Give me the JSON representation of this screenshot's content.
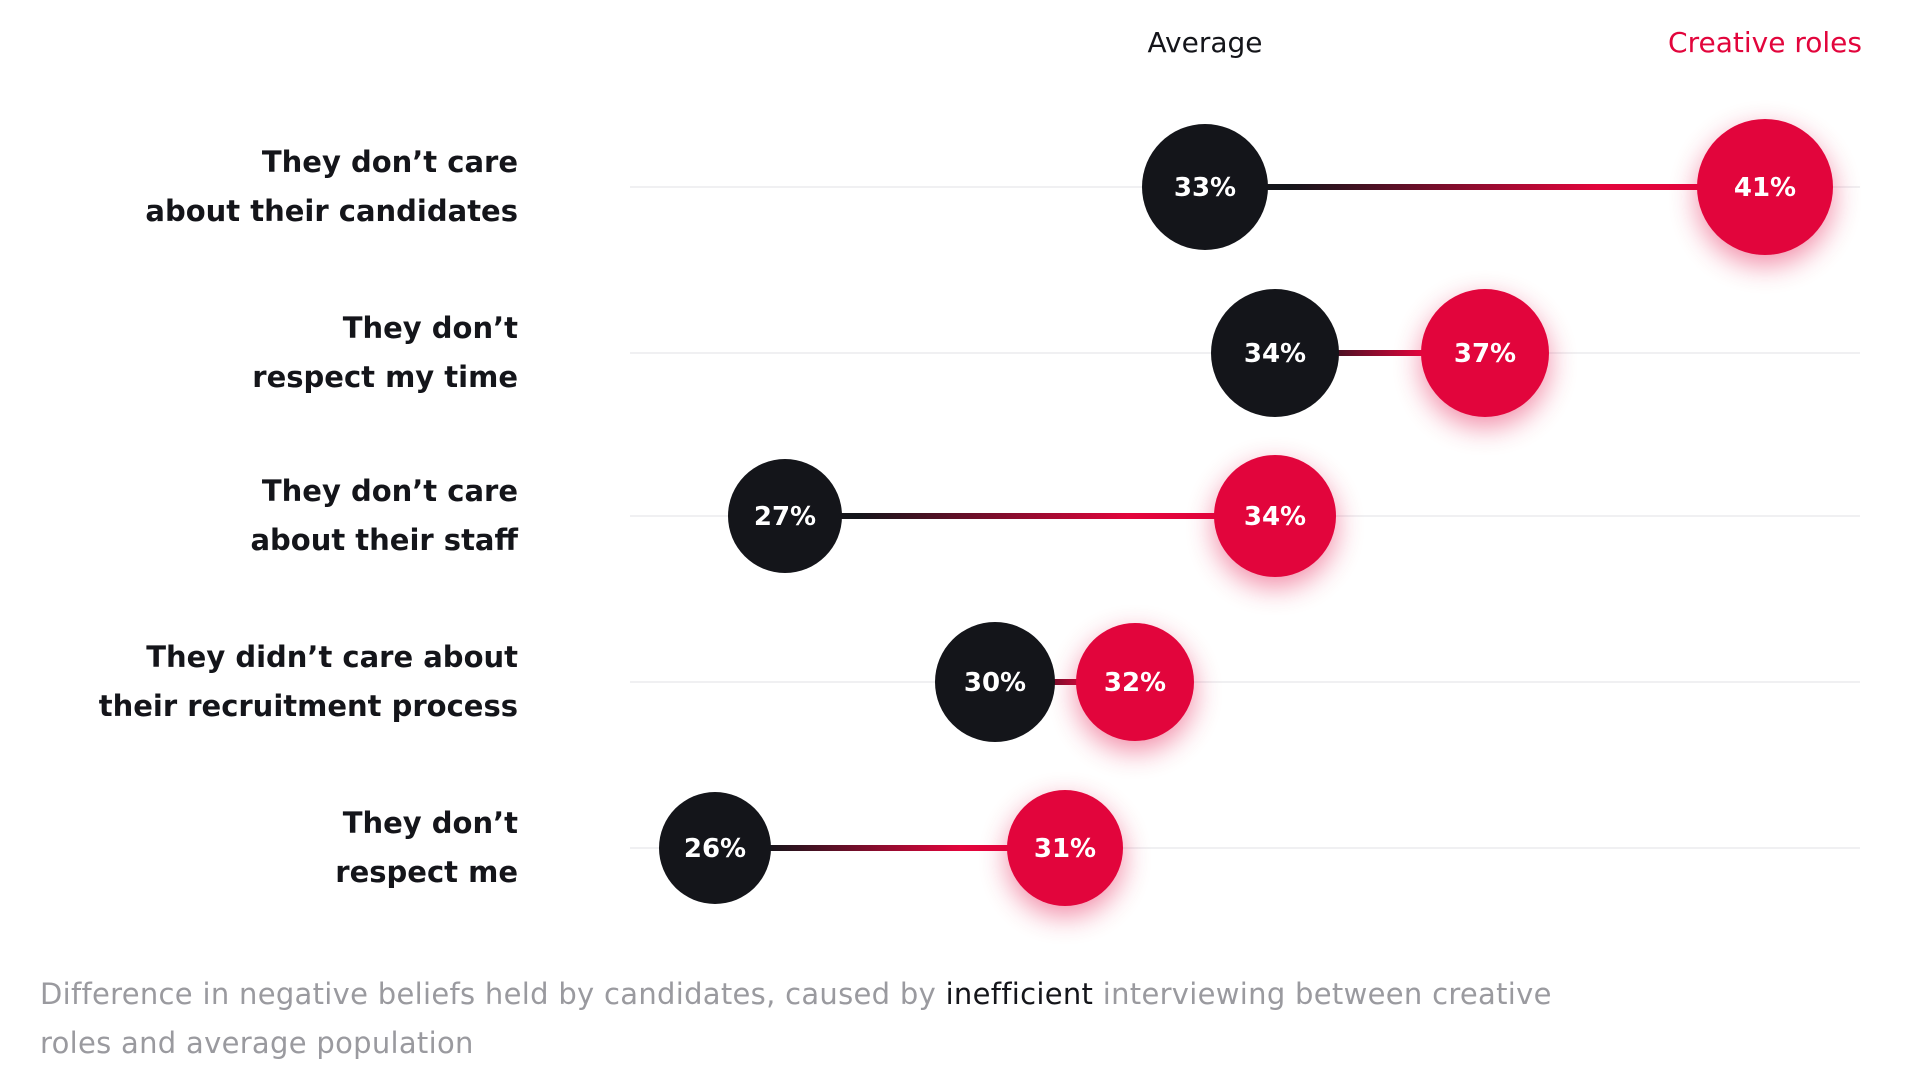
{
  "chart_data": {
    "type": "dumbbell",
    "title": "",
    "legend": {
      "average": "Average",
      "creative": "Creative roles"
    },
    "series": [
      {
        "name": "Average",
        "color": "#14151a",
        "values": [
          33,
          34,
          27,
          30,
          26
        ]
      },
      {
        "name": "Creative roles",
        "color": "#e2053c",
        "values": [
          41,
          37,
          34,
          32,
          31
        ]
      }
    ],
    "categories": [
      {
        "line1": "They don’t care",
        "line2": "about their candidates"
      },
      {
        "line1": "They don’t",
        "line2": "respect my time"
      },
      {
        "line1": "They don’t care",
        "line2": "about their staff"
      },
      {
        "line1": "They didn’t care about",
        "line2": "their recruitment process"
      },
      {
        "line1": "They don’t",
        "line2": "respect me"
      }
    ],
    "labels": {
      "average": [
        "33%",
        "34%",
        "27%",
        "30%",
        "26%"
      ],
      "creative": [
        "41%",
        "37%",
        "34%",
        "32%",
        "31%"
      ]
    },
    "xlim": [
      20,
      45
    ],
    "caption": {
      "before": "Difference in negative beliefs held by candidates, caused by ",
      "highlight": "inefficient",
      "after": " interviewing between creative roles and average population"
    }
  }
}
